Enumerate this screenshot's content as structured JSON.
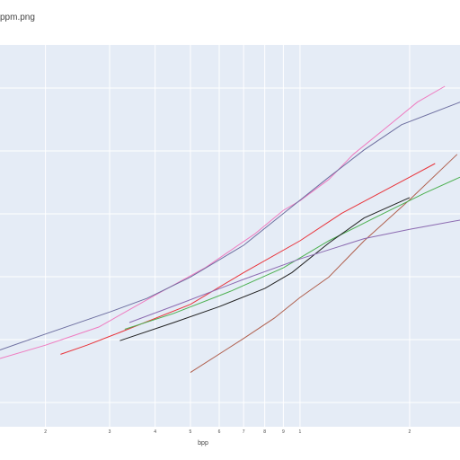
{
  "chart_data": {
    "type": "line",
    "title": "ppm.png",
    "xlabel": "bpp",
    "ylabel": "",
    "xscale": "log",
    "xlim": [
      0.15,
      2.75
    ],
    "ylim": [
      0,
      1
    ],
    "grid": true,
    "plot_bg": "#E5ECF6",
    "x_tick_labels": [
      {
        "value": 0.2,
        "label": "2"
      },
      {
        "value": 0.3,
        "label": "3"
      },
      {
        "value": 0.4,
        "label": "4"
      },
      {
        "value": 0.5,
        "label": "5"
      },
      {
        "value": 0.6,
        "label": "6"
      },
      {
        "value": 0.7,
        "label": "7"
      },
      {
        "value": 0.8,
        "label": "8"
      },
      {
        "value": 0.9,
        "label": "9"
      },
      {
        "value": 1.0,
        "label": "1"
      },
      {
        "value": 2.0,
        "label": "2"
      }
    ],
    "series": [
      {
        "color": "#EF7BC0",
        "points": [
          [
            0.15,
            0.144
          ],
          [
            0.2,
            0.186
          ],
          [
            0.28,
            0.243
          ],
          [
            0.4,
            0.343
          ],
          [
            0.55,
            0.43
          ],
          [
            0.75,
            0.535
          ],
          [
            0.9,
            0.61
          ],
          [
            1.0,
            0.64
          ],
          [
            1.2,
            0.707
          ],
          [
            1.4,
            0.786
          ],
          [
            1.7,
            0.864
          ],
          [
            2.1,
            0.95
          ],
          [
            2.5,
            1.0
          ]
        ]
      },
      {
        "color": "#6E6FA0",
        "points": [
          [
            0.15,
            0.171
          ],
          [
            0.2,
            0.221
          ],
          [
            0.3,
            0.29
          ],
          [
            0.38,
            0.333
          ],
          [
            0.5,
            0.4
          ],
          [
            0.7,
            0.5
          ],
          [
            0.9,
            0.6
          ],
          [
            1.2,
            0.714
          ],
          [
            1.5,
            0.8
          ],
          [
            1.9,
            0.879
          ],
          [
            2.75,
            0.95
          ]
        ]
      },
      {
        "color": "#E8333A",
        "points": [
          [
            0.22,
            0.157
          ],
          [
            0.26,
            0.186
          ],
          [
            0.32,
            0.226
          ],
          [
            0.5,
            0.314
          ],
          [
            0.7,
            0.414
          ],
          [
            1.0,
            0.514
          ],
          [
            1.3,
            0.6
          ],
          [
            2.0,
            0.714
          ],
          [
            2.35,
            0.757
          ]
        ]
      },
      {
        "color": "#B0604E",
        "points": [
          [
            0.5,
            0.1
          ],
          [
            0.7,
            0.207
          ],
          [
            0.85,
            0.271
          ],
          [
            1.0,
            0.336
          ],
          [
            1.2,
            0.4
          ],
          [
            1.5,
            0.514
          ],
          [
            2.0,
            0.643
          ],
          [
            2.7,
            0.786
          ]
        ]
      },
      {
        "color": "#4CB050",
        "points": [
          [
            0.33,
            0.236
          ],
          [
            0.45,
            0.286
          ],
          [
            0.65,
            0.357
          ],
          [
            0.9,
            0.429
          ],
          [
            1.2,
            0.514
          ],
          [
            1.6,
            0.586
          ],
          [
            2.2,
            0.664
          ],
          [
            2.75,
            0.714
          ]
        ]
      },
      {
        "color": "#222222",
        "points": [
          [
            0.32,
            0.2
          ],
          [
            0.45,
            0.257
          ],
          [
            0.6,
            0.307
          ],
          [
            0.8,
            0.364
          ],
          [
            0.95,
            0.414
          ],
          [
            1.2,
            0.507
          ],
          [
            1.5,
            0.586
          ],
          [
            2.0,
            0.65
          ]
        ]
      },
      {
        "color": "#8C6BB1",
        "points": [
          [
            0.34,
            0.257
          ],
          [
            0.48,
            0.321
          ],
          [
            0.7,
            0.393
          ],
          [
            1.0,
            0.457
          ],
          [
            1.5,
            0.521
          ],
          [
            2.0,
            0.55
          ],
          [
            2.75,
            0.579
          ]
        ]
      }
    ]
  }
}
